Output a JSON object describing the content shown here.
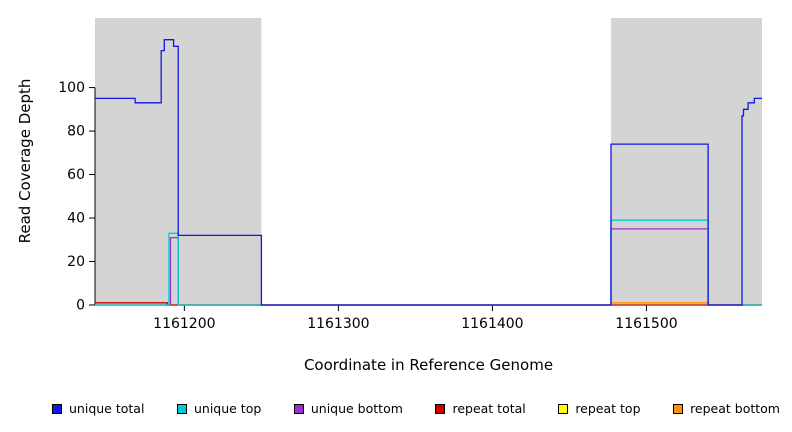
{
  "chart_data": {
    "type": "line",
    "title": "",
    "xlabel": "Coordinate in Reference Genome",
    "ylabel": "Read Coverage Depth",
    "xlim": [
      1161142,
      1161575
    ],
    "ylim": [
      0,
      132
    ],
    "x_ticks": [
      1161200,
      1161300,
      1161400,
      1161500
    ],
    "y_ticks": [
      0,
      20,
      40,
      60,
      80,
      100
    ],
    "grid": false,
    "legend_position": "bottom",
    "shaded_regions": [
      {
        "from": 1161142,
        "to": 1161250,
        "color": "#d4d4d4"
      },
      {
        "from": 1161477,
        "to": 1161575,
        "color": "#d4d4d4"
      }
    ],
    "series": [
      {
        "name": "unique total",
        "color": "#1515e6",
        "points": [
          [
            1161142,
            95
          ],
          [
            1161168,
            95
          ],
          [
            1161168,
            93
          ],
          [
            1161185,
            93
          ],
          [
            1161185,
            117
          ],
          [
            1161187,
            117
          ],
          [
            1161187,
            122
          ],
          [
            1161193,
            122
          ],
          [
            1161193,
            119
          ],
          [
            1161196,
            119
          ],
          [
            1161196,
            32
          ],
          [
            1161250,
            32
          ],
          [
            1161250,
            0
          ],
          [
            1161477,
            0
          ],
          [
            1161477,
            74
          ],
          [
            1161540,
            74
          ],
          [
            1161540,
            0
          ],
          [
            1161562,
            0
          ],
          [
            1161562,
            87
          ],
          [
            1161563,
            87
          ],
          [
            1161563,
            90
          ],
          [
            1161566,
            90
          ],
          [
            1161566,
            93
          ],
          [
            1161570,
            93
          ],
          [
            1161570,
            95
          ],
          [
            1161575,
            95
          ]
        ]
      },
      {
        "name": "unique top",
        "color": "#00cdcd",
        "points": [
          [
            1161142,
            0
          ],
          [
            1161190,
            0
          ],
          [
            1161190,
            33
          ],
          [
            1161196,
            33
          ],
          [
            1161196,
            0
          ],
          [
            1161477,
            0
          ],
          [
            1161477,
            39
          ],
          [
            1161540,
            39
          ],
          [
            1161540,
            0
          ],
          [
            1161575,
            0
          ]
        ]
      },
      {
        "name": "unique bottom",
        "color": "#9b30d0",
        "points": [
          [
            1161142,
            0
          ],
          [
            1161191,
            0
          ],
          [
            1161191,
            31
          ],
          [
            1161196,
            31
          ],
          [
            1161196,
            0
          ],
          [
            1161477,
            0
          ],
          [
            1161477,
            35
          ],
          [
            1161540,
            35
          ],
          [
            1161540,
            0
          ],
          [
            1161575,
            0
          ]
        ]
      },
      {
        "name": "repeat total",
        "color": "#cd0000",
        "points": [
          [
            1161142,
            1
          ],
          [
            1161189,
            1
          ],
          [
            1161189,
            0
          ],
          [
            1161575,
            0
          ]
        ]
      },
      {
        "name": "repeat top",
        "color": "#ffff00",
        "points": [
          [
            1161142,
            0
          ],
          [
            1161575,
            0
          ]
        ]
      },
      {
        "name": "repeat bottom",
        "color": "#ff9100",
        "points": [
          [
            1161142,
            0
          ],
          [
            1161477,
            0
          ],
          [
            1161477,
            1
          ],
          [
            1161540,
            1
          ],
          [
            1161540,
            0
          ],
          [
            1161575,
            0
          ]
        ]
      }
    ]
  }
}
